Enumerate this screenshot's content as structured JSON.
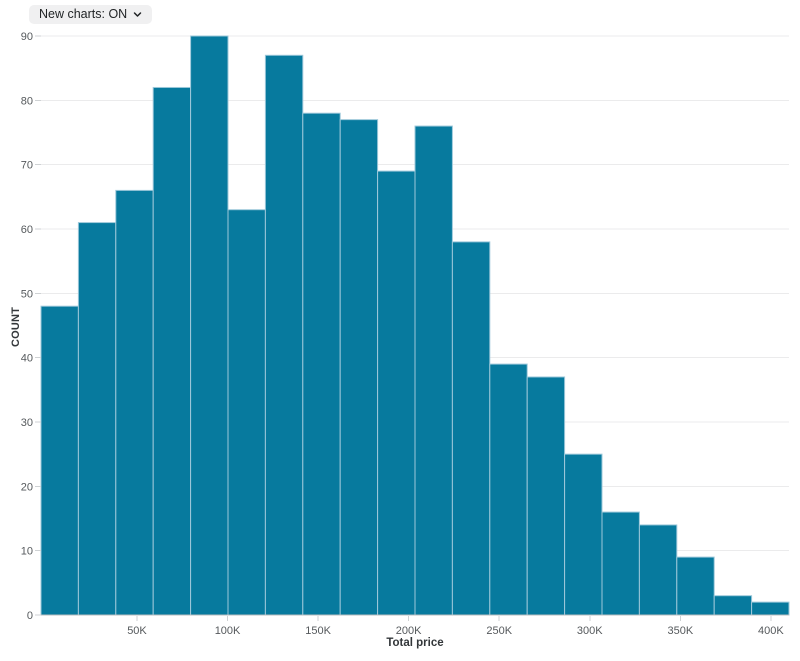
{
  "controls": {
    "new_charts_toggle": {
      "label": "New charts: ON",
      "icon": "chevron-down-icon"
    }
  },
  "chart_data": {
    "type": "bar",
    "subtype": "histogram",
    "title": "",
    "xlabel": "Total price",
    "ylabel": "COUNT",
    "categories": [
      "0-20K",
      "20-40K",
      "40-60K",
      "60-80K",
      "80-100K",
      "100-120K",
      "120-140K",
      "140-160K",
      "160-180K",
      "180-200K",
      "200-220K",
      "220-240K",
      "240-260K",
      "260-280K",
      "280-300K",
      "300-320K",
      "320-340K",
      "340-360K",
      "360-380K",
      "380-400K"
    ],
    "values": [
      48,
      61,
      66,
      82,
      90,
      63,
      87,
      78,
      77,
      69,
      76,
      58,
      39,
      37,
      25,
      16,
      14,
      9,
      3,
      2
    ],
    "bin_size": 20000,
    "x_ticks": [
      {
        "value": 50000,
        "label": "50K"
      },
      {
        "value": 100000,
        "label": "100K"
      },
      {
        "value": 150000,
        "label": "150K"
      },
      {
        "value": 200000,
        "label": "200K"
      },
      {
        "value": 250000,
        "label": "250K"
      },
      {
        "value": 300000,
        "label": "300K"
      },
      {
        "value": 350000,
        "label": "350K"
      },
      {
        "value": 400000,
        "label": "400K"
      }
    ],
    "y_ticks": [
      0,
      10,
      20,
      30,
      40,
      50,
      60,
      70,
      80,
      90
    ],
    "xlim": [
      -3000,
      410000
    ],
    "ylim": [
      0,
      90
    ],
    "grid": "horizontal",
    "legend": "none",
    "colors": {
      "bar_fill": "#077a9e",
      "bar_stroke": "#9dc8da",
      "gridline": "#ebebec",
      "axis_line": "#b9bcbf",
      "tick_mark": "#cfd2d4",
      "tick_text": "#55595c",
      "dropdown_bg": "#f0f0f1",
      "dropdown_text": "#1f2224",
      "background": "#ffffff"
    }
  }
}
